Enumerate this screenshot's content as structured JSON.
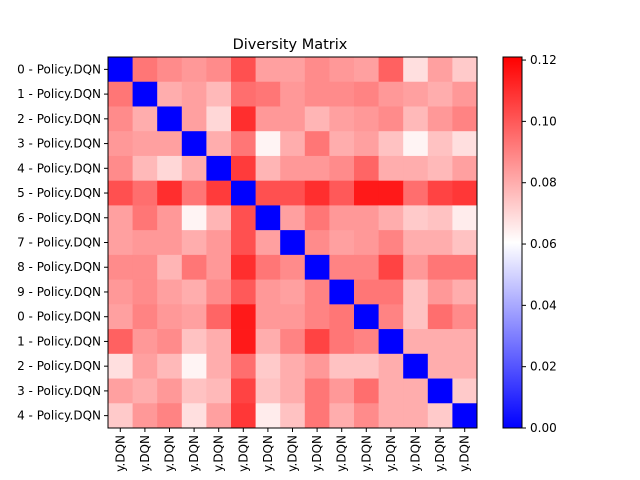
{
  "chart_data": {
    "type": "heatmap",
    "title": "Diversity Matrix",
    "row_labels": [
      "0 - Policy.DQN",
      "1 - Policy.DQN",
      "2 - Policy.DQN",
      "3 - Policy.DQN",
      "4 - Policy.DQN",
      "5 - Policy.DQN",
      "6 - Policy.DQN",
      "7 - Policy.DQN",
      "8 - Policy.DQN",
      "9 - Policy.DQN",
      "0 - Policy.DQN",
      "1 - Policy.DQN",
      "2 - Policy.DQN",
      "3 - Policy.DQN",
      "4 - Policy.DQN"
    ],
    "col_labels": [
      "y.DQN",
      "y.DQN",
      "y.DQN",
      "y.DQN",
      "y.DQN",
      "y.DQN",
      "y.DQN",
      "y.DQN",
      "y.DQN",
      "y.DQN",
      "y.DQN",
      "y.DQN",
      "y.DQN",
      "y.DQN",
      "y.DQN"
    ],
    "colormap": "bwr",
    "colormap_colors": [
      "#0000ff",
      "#ffffff",
      "#ff0000"
    ],
    "vmin": 0.0,
    "vmax": 0.121,
    "colorbar_ticks": [
      "0.00",
      "0.02",
      "0.04",
      "0.06",
      "0.08",
      "0.10",
      "0.12"
    ],
    "colorbar_tick_values": [
      0.0,
      0.02,
      0.04,
      0.06,
      0.08,
      0.1,
      0.12
    ],
    "values": [
      [
        0.0,
        0.093,
        0.088,
        0.085,
        0.088,
        0.102,
        0.083,
        0.083,
        0.088,
        0.085,
        0.083,
        0.098,
        0.068,
        0.083,
        0.073
      ],
      [
        0.093,
        0.0,
        0.08,
        0.083,
        0.077,
        0.095,
        0.093,
        0.085,
        0.088,
        0.088,
        0.09,
        0.085,
        0.083,
        0.08,
        0.085
      ],
      [
        0.088,
        0.08,
        0.0,
        0.083,
        0.07,
        0.11,
        0.085,
        0.085,
        0.078,
        0.083,
        0.085,
        0.088,
        0.077,
        0.085,
        0.09
      ],
      [
        0.085,
        0.083,
        0.083,
        0.0,
        0.08,
        0.093,
        0.063,
        0.08,
        0.093,
        0.08,
        0.083,
        0.075,
        0.063,
        0.075,
        0.068
      ],
      [
        0.088,
        0.077,
        0.07,
        0.08,
        0.0,
        0.107,
        0.078,
        0.085,
        0.085,
        0.088,
        0.097,
        0.08,
        0.08,
        0.077,
        0.083
      ],
      [
        0.102,
        0.095,
        0.11,
        0.093,
        0.107,
        0.0,
        0.102,
        0.102,
        0.11,
        0.1,
        0.115,
        0.115,
        0.095,
        0.105,
        0.108
      ],
      [
        0.083,
        0.093,
        0.085,
        0.063,
        0.078,
        0.102,
        0.0,
        0.083,
        0.093,
        0.085,
        0.085,
        0.08,
        0.073,
        0.075,
        0.065
      ],
      [
        0.083,
        0.085,
        0.085,
        0.08,
        0.085,
        0.102,
        0.083,
        0.0,
        0.088,
        0.083,
        0.085,
        0.09,
        0.08,
        0.08,
        0.075
      ],
      [
        0.088,
        0.088,
        0.078,
        0.093,
        0.085,
        0.11,
        0.093,
        0.088,
        0.0,
        0.09,
        0.09,
        0.105,
        0.085,
        0.093,
        0.093
      ],
      [
        0.085,
        0.088,
        0.083,
        0.08,
        0.088,
        0.1,
        0.085,
        0.083,
        0.09,
        0.0,
        0.093,
        0.093,
        0.075,
        0.085,
        0.08
      ],
      [
        0.083,
        0.09,
        0.085,
        0.083,
        0.097,
        0.115,
        0.085,
        0.085,
        0.09,
        0.093,
        0.0,
        0.09,
        0.075,
        0.095,
        0.088
      ],
      [
        0.098,
        0.085,
        0.088,
        0.075,
        0.08,
        0.115,
        0.08,
        0.09,
        0.105,
        0.093,
        0.09,
        0.0,
        0.08,
        0.08,
        0.08
      ],
      [
        0.068,
        0.083,
        0.077,
        0.063,
        0.08,
        0.095,
        0.073,
        0.08,
        0.085,
        0.075,
        0.075,
        0.08,
        0.0,
        0.08,
        0.08
      ],
      [
        0.083,
        0.08,
        0.085,
        0.075,
        0.077,
        0.105,
        0.075,
        0.08,
        0.093,
        0.085,
        0.095,
        0.08,
        0.08,
        0.0,
        0.073
      ],
      [
        0.073,
        0.085,
        0.09,
        0.068,
        0.083,
        0.108,
        0.065,
        0.075,
        0.093,
        0.08,
        0.088,
        0.08,
        0.08,
        0.073,
        0.0
      ]
    ]
  }
}
